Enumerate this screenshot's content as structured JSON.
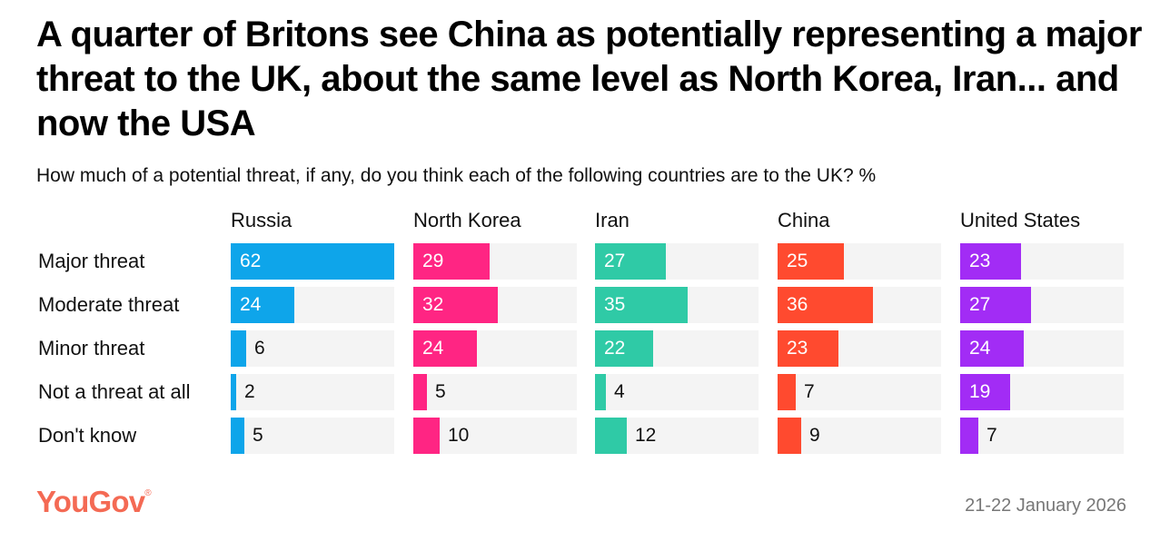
{
  "chart_data": {
    "type": "bar",
    "title": "A quarter of Britons see China as potentially representing a major threat to the UK, about the same level as North Korea, Iran... and now the USA",
    "subtitle": "How much of a potential threat, if any, do you think each of the following countries are to the UK? %",
    "categories": [
      "Major threat",
      "Moderate threat",
      "Minor threat",
      "Not a threat at all",
      "Don't know"
    ],
    "xlim": [
      0,
      62
    ],
    "series": [
      {
        "name": "Russia",
        "color": "#0ea5ea",
        "values": [
          62,
          24,
          6,
          2,
          5
        ]
      },
      {
        "name": "North Korea",
        "color": "#ff2583",
        "values": [
          29,
          32,
          24,
          5,
          10
        ]
      },
      {
        "name": "Iran",
        "color": "#2fcaa6",
        "values": [
          27,
          35,
          22,
          4,
          12
        ]
      },
      {
        "name": "China",
        "color": "#ff4a2f",
        "values": [
          25,
          36,
          23,
          7,
          9
        ]
      },
      {
        "name": "United States",
        "color": "#a22cf5",
        "values": [
          23,
          27,
          24,
          19,
          7
        ]
      }
    ]
  },
  "footer": {
    "logo": "YouGov",
    "logo_mark": "®",
    "date": "21-22 January 2026"
  }
}
